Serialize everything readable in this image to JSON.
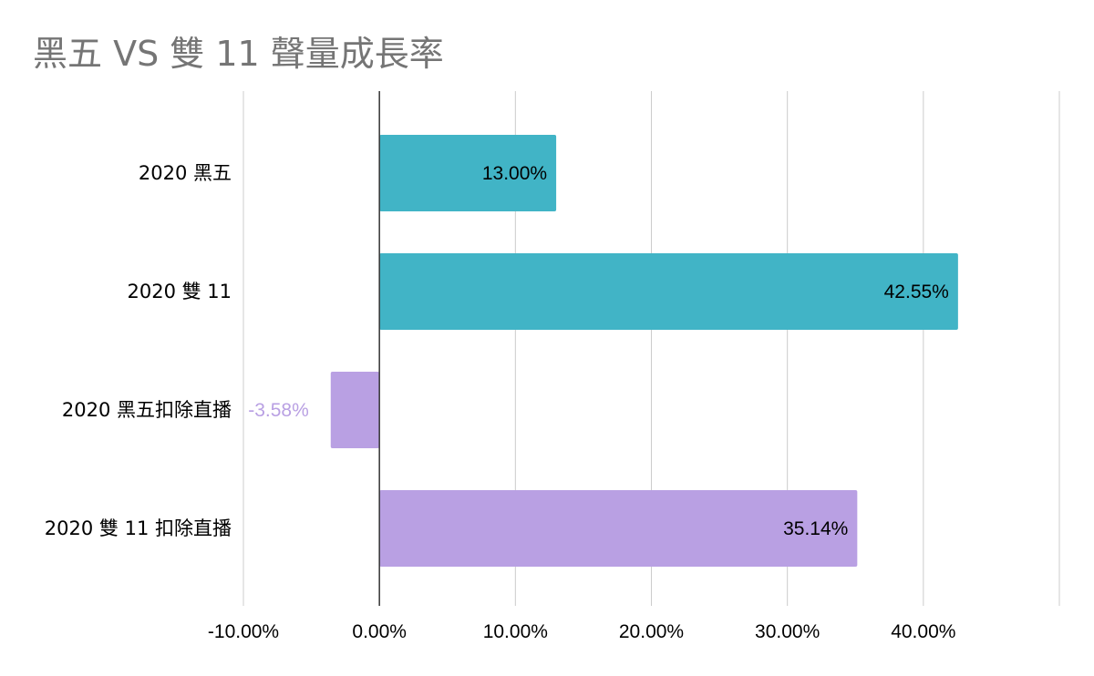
{
  "chart_data": {
    "type": "bar",
    "orientation": "horizontal",
    "title": "黑五 VS 雙 11  聲量成長率",
    "xlabel": "",
    "ylabel": "",
    "categories": [
      "2020 黑五",
      "2020 雙 11",
      "2020 黑五扣除直播",
      "2020 雙 11 扣除直播"
    ],
    "values": [
      13.0,
      42.55,
      -3.58,
      35.14
    ],
    "value_labels": [
      "13.00%",
      "42.55%",
      "-3.58%",
      "35.14%"
    ],
    "bar_colors": [
      "#41b4c6",
      "#41b4c6",
      "#b9a0e3",
      "#b9a0e3"
    ],
    "value_label_colors": [
      "#000000",
      "#000000",
      "#b9a0e3",
      "#000000"
    ],
    "xlim": [
      -10,
      50
    ],
    "xticks": [
      -10,
      0,
      10,
      20,
      30,
      40
    ],
    "xtick_labels": [
      "-10.00%",
      "0.00%",
      "10.00%",
      "20.00%",
      "30.00%",
      "40.00%"
    ],
    "grid": true,
    "legend": "none"
  }
}
